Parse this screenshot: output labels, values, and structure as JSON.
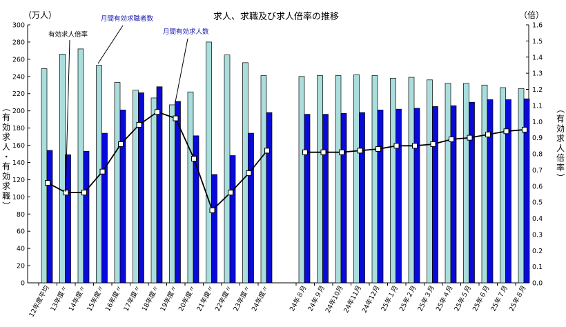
{
  "chart_data": {
    "type": "bar",
    "title": "求人、求職及び求人倍率の推移",
    "left_unit": "（万人）",
    "right_unit": "（倍）",
    "left_axis_label": "（有効求人・有効求職）",
    "right_axis_label": "（有効求人倍率）",
    "left_ylim": [
      0,
      300
    ],
    "left_ticks": [
      0,
      20,
      40,
      60,
      80,
      100,
      120,
      140,
      160,
      180,
      200,
      220,
      240,
      260,
      280,
      300
    ],
    "right_ylim": [
      0,
      1.6
    ],
    "right_ticks": [
      "0.0",
      "0.1",
      "0.2",
      "0.3",
      "0.4",
      "0.5",
      "0.6",
      "0.7",
      "0.8",
      "0.9",
      "1.0",
      "1.1",
      "1.2",
      "1.3",
      "1.4",
      "1.5",
      "1.6"
    ],
    "categories": [
      "12年度平均",
      "13年度〃",
      "14年度〃",
      "15年度〃",
      "16年度〃",
      "17年度〃",
      "18年度〃",
      "19年度〃",
      "20年度〃",
      "21年度〃",
      "22年度〃",
      "23年度〃",
      "24年度〃",
      "24年８月",
      "24年９月",
      "24年10月",
      "24年11月",
      "24年12月",
      "25年１月",
      "25年２月",
      "25年３月",
      "25年４月",
      "25年５月",
      "25年６月",
      "25年７月",
      "25年８月"
    ],
    "series": [
      {
        "name": "月間有効求職者数",
        "kind": "bar",
        "color": "#a9dedd",
        "values": [
          249,
          266,
          272,
          253,
          233,
          224,
          215,
          207,
          222,
          280,
          265,
          256,
          241,
          240,
          241,
          241,
          242,
          241,
          238,
          239,
          236,
          232,
          232,
          230,
          227,
          226
        ]
      },
      {
        "name": "月間有効求人数",
        "kind": "bar",
        "color": "#0a0ad8",
        "values": [
          154,
          149,
          153,
          174,
          201,
          221,
          228,
          211,
          171,
          126,
          148,
          174,
          198,
          196,
          196,
          197,
          198,
          201,
          202,
          203,
          205,
          206,
          210,
          213,
          213,
          214
        ]
      },
      {
        "name": "有効求人倍率",
        "kind": "line",
        "axis": "right",
        "color": "#000000",
        "values": [
          0.62,
          0.56,
          0.56,
          0.69,
          0.86,
          0.98,
          1.06,
          1.02,
          0.77,
          0.45,
          0.56,
          0.68,
          0.82,
          0.81,
          0.81,
          0.81,
          0.82,
          0.83,
          0.85,
          0.85,
          0.86,
          0.89,
          0.9,
          0.92,
          0.94,
          0.95
        ]
      }
    ],
    "annotations": [
      "有効求人倍率",
      "月間有効求職者数",
      "月間有効求人数"
    ]
  }
}
